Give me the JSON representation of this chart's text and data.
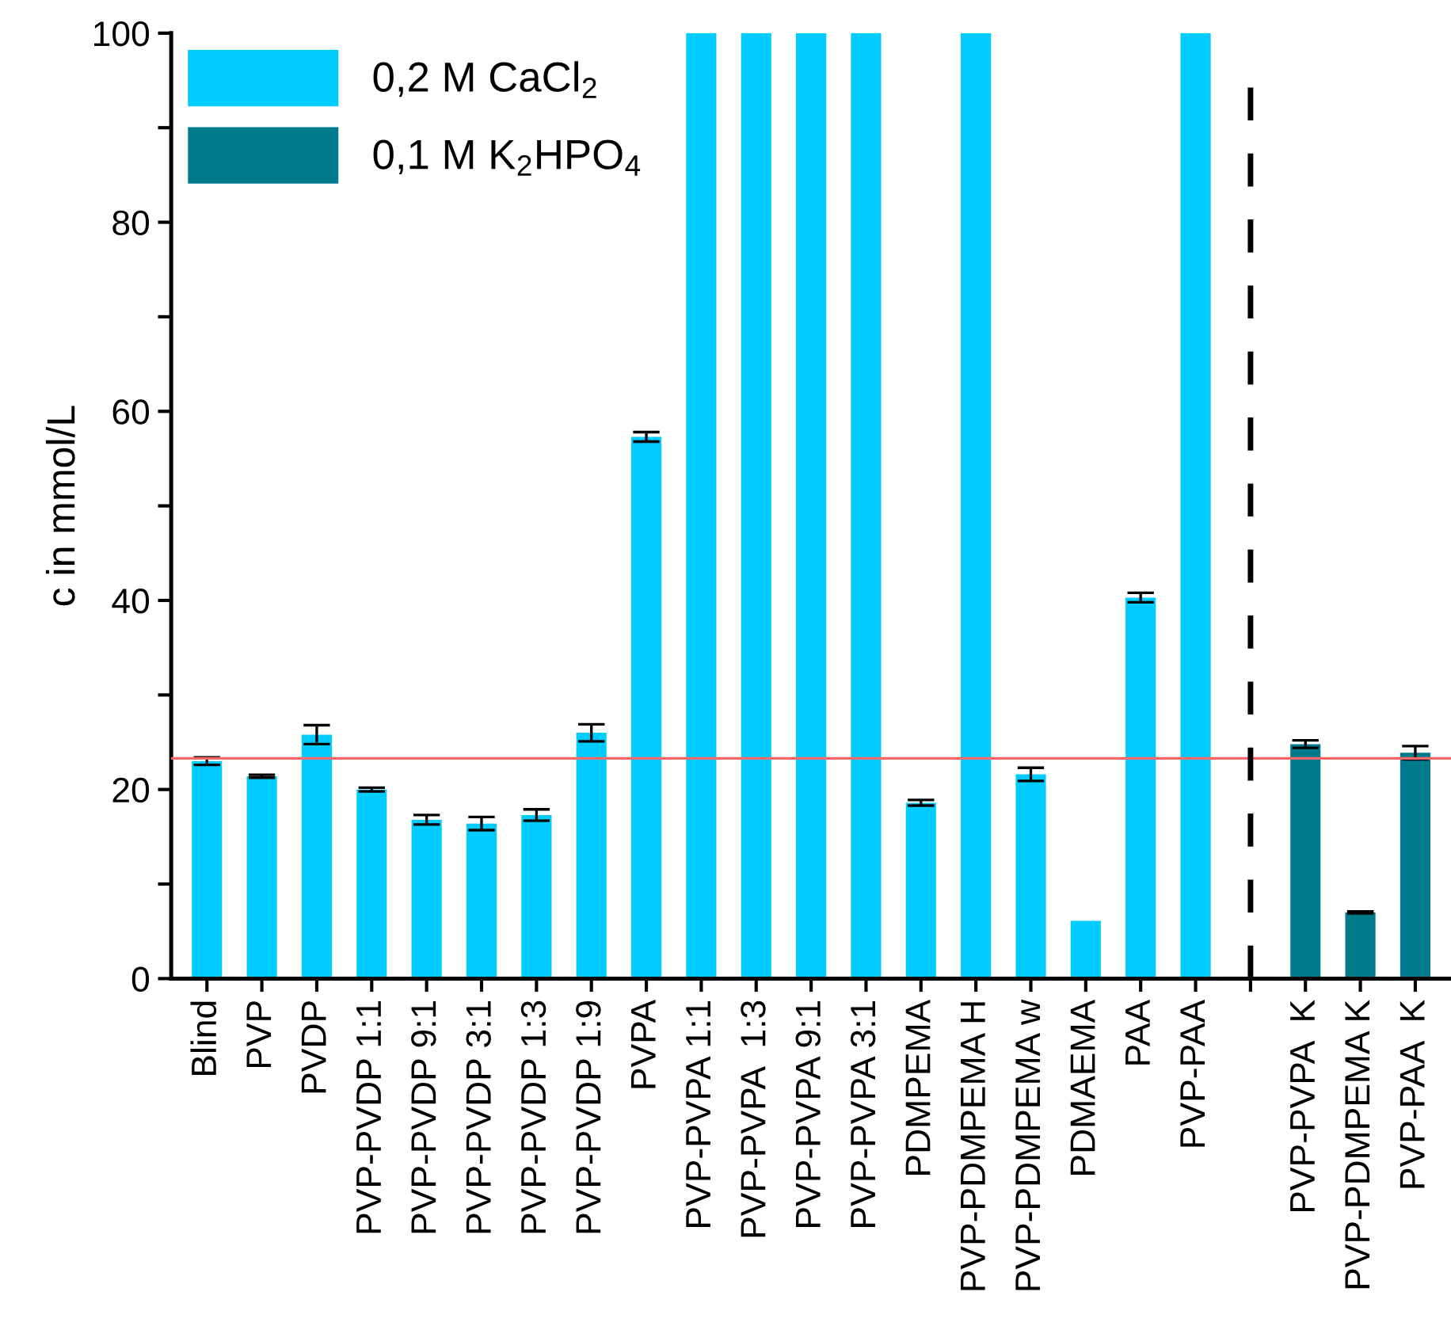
{
  "chart_data": {
    "type": "bar",
    "ylabel": "c in mmol/L",
    "categories": [
      "Blind",
      "PVP",
      "PVDP",
      "PVP-PVDP 1:1",
      "PVP-PVDP 9:1",
      "PVP-PVDP 3:1",
      "PVP-PVDP 1:3",
      "PVP-PVDP 1:9",
      "PVPA",
      "PVP-PVPA 1:1",
      "PVP-PVPA  1:3",
      "PVP-PVPA 9:1",
      "PVP-PVPA 3:1",
      "PDMPEMA",
      "PVP-PDMPEMA H",
      "PVP-PDMPEMA w",
      "PDMAEMA",
      "PAA",
      "PVP-PAA",
      null,
      "PVP-PVPA  K",
      "PVP-PDMPEMA K",
      "PVP-PAA  K"
    ],
    "series": [
      {
        "name": "0,2 M CaCl$_{2}$",
        "color": "#00ccff",
        "values": [
          23.0,
          21.4,
          25.8,
          20.0,
          16.8,
          16.4,
          17.3,
          26.0,
          57.3,
          100,
          100,
          100,
          100,
          18.6,
          100,
          21.6,
          6.1,
          40.3,
          100,
          null,
          null,
          null,
          null
        ],
        "errors": [
          0.4,
          0.15,
          1.0,
          0.2,
          0.5,
          0.7,
          0.6,
          0.9,
          0.5,
          null,
          null,
          null,
          null,
          0.3,
          null,
          0.7,
          null,
          0.5,
          null,
          null,
          null,
          null,
          null
        ]
      },
      {
        "name": "0,1 M K$_{2}$HPO$_{4}$",
        "color": "#007b8c",
        "values": [
          null,
          null,
          null,
          null,
          null,
          null,
          null,
          null,
          null,
          null,
          null,
          null,
          null,
          null,
          null,
          null,
          null,
          null,
          null,
          null,
          24.8,
          7.0,
          23.9
        ],
        "errors": [
          null,
          null,
          null,
          null,
          null,
          null,
          null,
          null,
          null,
          null,
          null,
          null,
          null,
          null,
          null,
          null,
          null,
          null,
          null,
          null,
          0.4,
          0.1,
          0.7
        ]
      }
    ],
    "ylim": [
      0,
      100
    ],
    "yticks": [
      0,
      {
        "value": 10,
        "label": null
      },
      20,
      {
        "value": 30,
        "label": null
      },
      40,
      {
        "value": 50,
        "label": null
      },
      60,
      {
        "value": 70,
        "label": null
      },
      80,
      {
        "value": 90,
        "label": null
      },
      100
    ],
    "ref_lines": [
      {
        "axis": "y",
        "value": 23.3,
        "color": "#ff6666",
        "line_style": "solid"
      }
    ],
    "legend": "top left"
  }
}
